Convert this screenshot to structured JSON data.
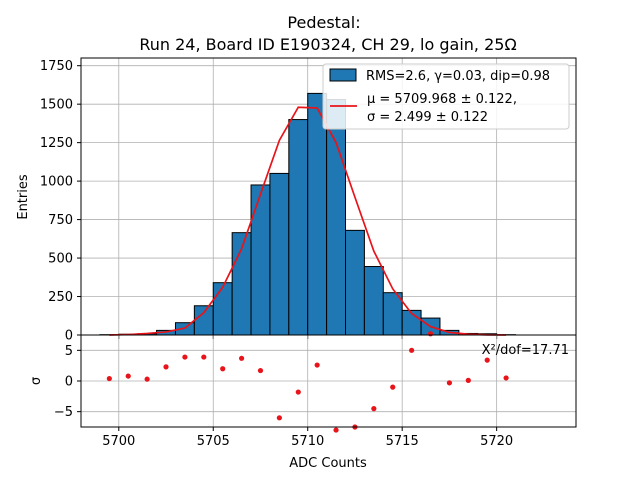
{
  "chart_data": {
    "type": "bar",
    "title_line1": "Pedestal:",
    "title_line2": "Run 24, Board ID E190324, CH 29, lo gain, 25Ω",
    "xlabel": "ADC Counts",
    "ylabel_top": "Entries",
    "ylabel_bottom": "σ",
    "xlim": [
      5698,
      5724.2
    ],
    "xticks": [
      5700,
      5705,
      5710,
      5715,
      5720
    ],
    "ylim_top": [
      0,
      1800
    ],
    "yticks_top": [
      0,
      250,
      500,
      750,
      1000,
      1250,
      1500,
      1750
    ],
    "ylim_bottom": [
      -7.5,
      7.5
    ],
    "yticks_bottom": [
      -5,
      0,
      5
    ],
    "grid": true,
    "colors": {
      "hist": "#1f77b4",
      "fit": "#e8141a",
      "residual": "#e8141a"
    },
    "legend": {
      "placement": "top-right",
      "entries": [
        {
          "name": "RMS=2.6, γ=0.03, dip=0.98",
          "marker": "patch"
        },
        {
          "name": "μ = 5709.968 ± 0.122,",
          "name2": "σ = 2.499 ± 0.122",
          "marker": "line"
        }
      ]
    },
    "annotation": "X²/dof=17.71",
    "bin_edges": [
      5699,
      5700,
      5701,
      5702,
      5703,
      5704,
      5705,
      5706,
      5707,
      5708,
      5709,
      5710,
      5711,
      5712,
      5713,
      5714,
      5715,
      5716,
      5717,
      5718,
      5719,
      5720,
      5721
    ],
    "series": [
      {
        "name": "RMS=2.6, γ=0.03, dip=0.98",
        "values": [
          2,
          5,
          8,
          30,
          80,
          190,
          340,
          665,
          975,
          1050,
          1400,
          1570,
          1530,
          680,
          445,
          275,
          160,
          110,
          30,
          10,
          8,
          2
        ]
      },
      {
        "name": "fit",
        "x": [
          5699.5,
          5700.5,
          5701.5,
          5702.5,
          5703.5,
          5704.5,
          5705.5,
          5706.5,
          5707.5,
          5708.5,
          5709.5,
          5710.5,
          5711.5,
          5712.5,
          5713.5,
          5714.5,
          5715.5,
          5716.5,
          5717.5,
          5718.5,
          5719.5,
          5720.5
        ],
        "values": [
          0,
          3,
          10,
          20,
          45,
          145,
          310,
          560,
          915,
          1265,
          1480,
          1475,
          1250,
          895,
          545,
          300,
          140,
          55,
          17,
          5,
          1,
          0
        ]
      },
      {
        "name": "residuals",
        "x": [
          5699.5,
          5700.5,
          5701.5,
          5702.5,
          5703.5,
          5704.5,
          5705.5,
          5706.5,
          5707.5,
          5708.5,
          5709.5,
          5710.5,
          5711.5,
          5712.5,
          5713.5,
          5714.5,
          5715.5,
          5716.5,
          5717.5,
          5718.5,
          5719.5,
          5720.5
        ],
        "values": [
          0.4,
          0.8,
          0.3,
          2.3,
          3.9,
          3.9,
          2.0,
          3.7,
          1.7,
          -6.0,
          -1.8,
          2.6,
          -8.0,
          -7.5,
          -4.5,
          -1.0,
          5.0,
          7.7,
          -0.3,
          0.1,
          3.4,
          0.5
        ]
      }
    ]
  }
}
